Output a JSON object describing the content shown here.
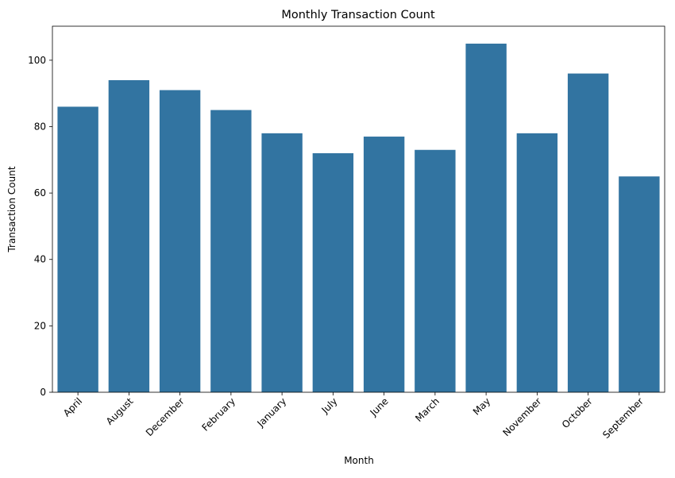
{
  "chart_data": {
    "type": "bar",
    "title": "Monthly Transaction Count",
    "xlabel": "Month",
    "ylabel": "Transaction Count",
    "categories": [
      "April",
      "August",
      "December",
      "February",
      "January",
      "July",
      "June",
      "March",
      "May",
      "November",
      "October",
      "September"
    ],
    "values": [
      86,
      94,
      91,
      85,
      78,
      72,
      77,
      73,
      105,
      78,
      96,
      65
    ],
    "ylim": [
      0,
      110.25
    ],
    "yticks": [
      0,
      20,
      40,
      60,
      80,
      100
    ],
    "bar_color": "#3274a1",
    "grid": false,
    "legend": "none"
  }
}
